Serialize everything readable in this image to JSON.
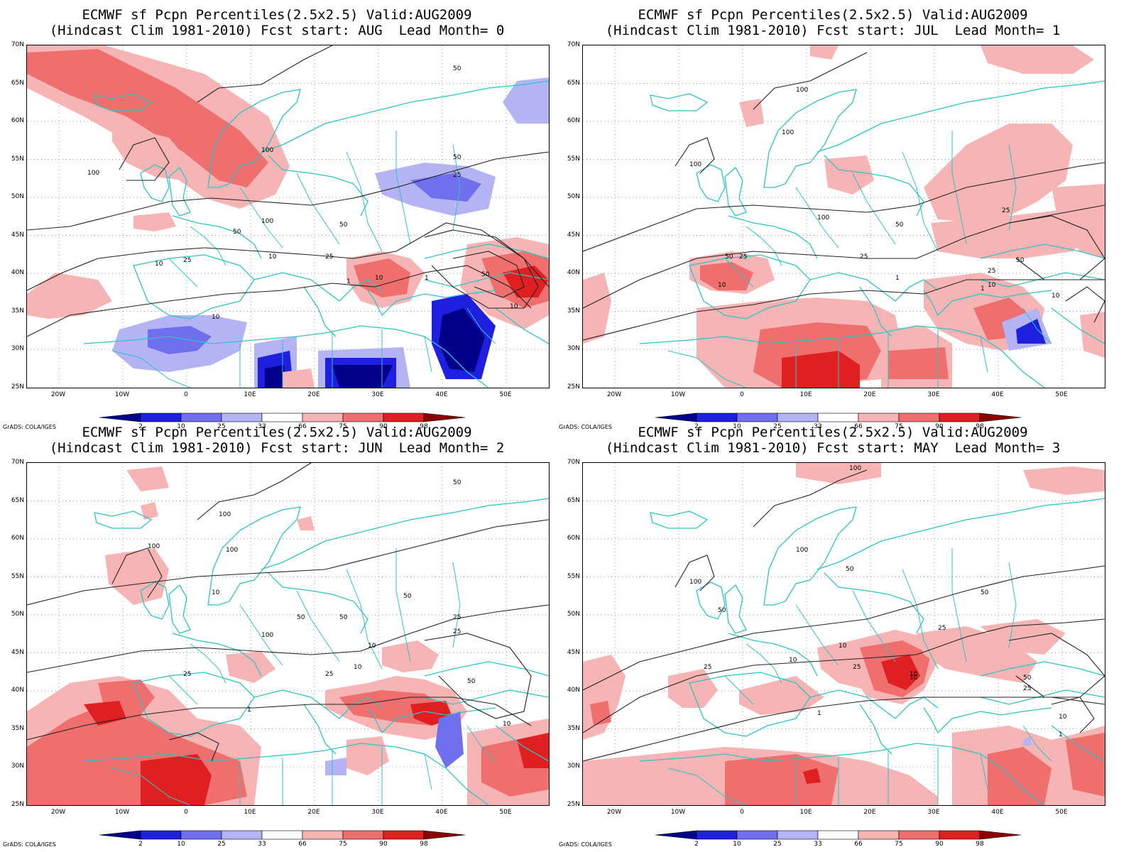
{
  "panels": [
    {
      "title_line1": "ECMWF sf Pcpn Percentiles(2.5x2.5) Valid:AUG2009",
      "title_line2": "(Hindcast Clim 1981-2010) Fcst start: AUG  Lead Month= 0",
      "contour_labels": [
        "100",
        "50",
        "100",
        "50",
        "25",
        "100",
        "50",
        "50",
        "10",
        "25",
        "10",
        "25",
        "10",
        "1",
        "10",
        "50",
        "10",
        "1"
      ]
    },
    {
      "title_line1": "ECMWF sf Pcpn Percentiles(2.5x2.5) Valid:AUG2009",
      "title_line2": "(Hindcast Clim 1981-2010) Fcst start: JUL  Lead Month= 1",
      "contour_labels": [
        "100",
        "100",
        "100",
        "100",
        "50",
        "50",
        "25",
        "25",
        "10",
        "25",
        "1",
        "50",
        "25",
        "10",
        "10",
        "1"
      ]
    },
    {
      "title_line1": "ECMWF sf Pcpn Percentiles(2.5x2.5) Valid:AUG2009",
      "title_line2": "(Hindcast Clim 1981-2010) Fcst start: JUN  Lead Month= 2",
      "contour_labels": [
        "50",
        "100",
        "100",
        "100",
        "50",
        "50",
        "25",
        "100",
        "50",
        "10",
        "10",
        "25",
        "25",
        "10",
        "50",
        "10",
        "1",
        "25"
      ]
    },
    {
      "title_line1": "ECMWF sf Pcpn Percentiles(2.5x2.5) Valid:AUG2009",
      "title_line2": "(Hindcast Clim 1981-2010) Fcst start: MAY  Lead Month= 3",
      "contour_labels": [
        "100",
        "100",
        "100",
        "50",
        "50",
        "50",
        "25",
        "10",
        "10",
        "25",
        "10",
        "25",
        "1",
        "10",
        "50",
        "25",
        "10",
        "1"
      ]
    }
  ],
  "axes": {
    "lat_labels": [
      "70N",
      "65N",
      "60N",
      "55N",
      "50N",
      "45N",
      "40N",
      "35N",
      "30N",
      "25N"
    ],
    "lon_labels": [
      "20W",
      "10W",
      "0",
      "10E",
      "20E",
      "30E",
      "40E",
      "50E"
    ]
  },
  "colorbar": {
    "labels": [
      "2",
      "10",
      "25",
      "33",
      "66",
      "75",
      "90",
      "98"
    ],
    "colors": [
      "#00008b",
      "#1f1fe0",
      "#7070ee",
      "#b4b4f4",
      "#ffffff",
      "#f7b4b4",
      "#ef6f6f",
      "#e02020",
      "#8b0000"
    ]
  },
  "credit": "GrADS: COLA/IGES"
}
